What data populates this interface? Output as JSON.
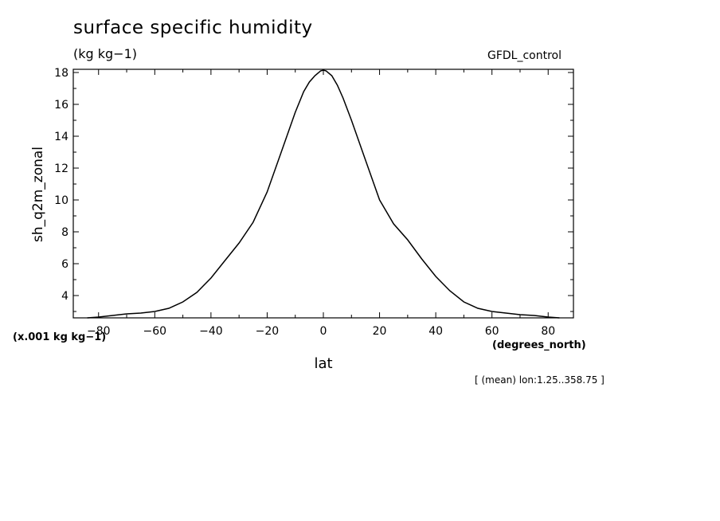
{
  "chart_data": {
    "type": "line",
    "title": "surface specific humidity",
    "units": "(kg kg−1)",
    "dataset": "GFDL_control",
    "ylabel": "sh_q2m_zonal",
    "yscale_note": "(x.001 kg kg−1)",
    "xlabel": "lat",
    "xunits": "(degrees_north)",
    "footnote": "[ (mean) lon:1.25..358.75 ]",
    "xlim": [
      -89,
      89
    ],
    "ylim": [
      2.6,
      18.2
    ],
    "xticks": [
      -80,
      -60,
      -40,
      -20,
      0,
      20,
      40,
      60,
      80
    ],
    "yticks": [
      4,
      6,
      8,
      10,
      12,
      14,
      16,
      18
    ],
    "grid": false,
    "series": [
      {
        "x": [
          -84,
          -80,
          -75,
          -70,
          -65,
          -60,
          -55,
          -50,
          -45,
          -40,
          -35,
          -30,
          -25,
          -20,
          -15,
          -10,
          -7,
          -5,
          -3,
          -1,
          0,
          1,
          3,
          5,
          7,
          10,
          15,
          20,
          25,
          30,
          35,
          40,
          45,
          50,
          55,
          60,
          65,
          70,
          75,
          80,
          84
        ],
        "y": [
          2.6,
          2.65,
          2.75,
          2.85,
          2.9,
          3.0,
          3.2,
          3.6,
          4.2,
          5.1,
          6.2,
          7.3,
          8.6,
          10.5,
          13.0,
          15.5,
          16.8,
          17.4,
          17.8,
          18.1,
          18.15,
          18.1,
          17.8,
          17.2,
          16.4,
          15.0,
          12.5,
          10.0,
          8.5,
          7.5,
          6.3,
          5.2,
          4.3,
          3.6,
          3.2,
          3.0,
          2.9,
          2.8,
          2.75,
          2.65,
          2.6
        ]
      }
    ]
  }
}
